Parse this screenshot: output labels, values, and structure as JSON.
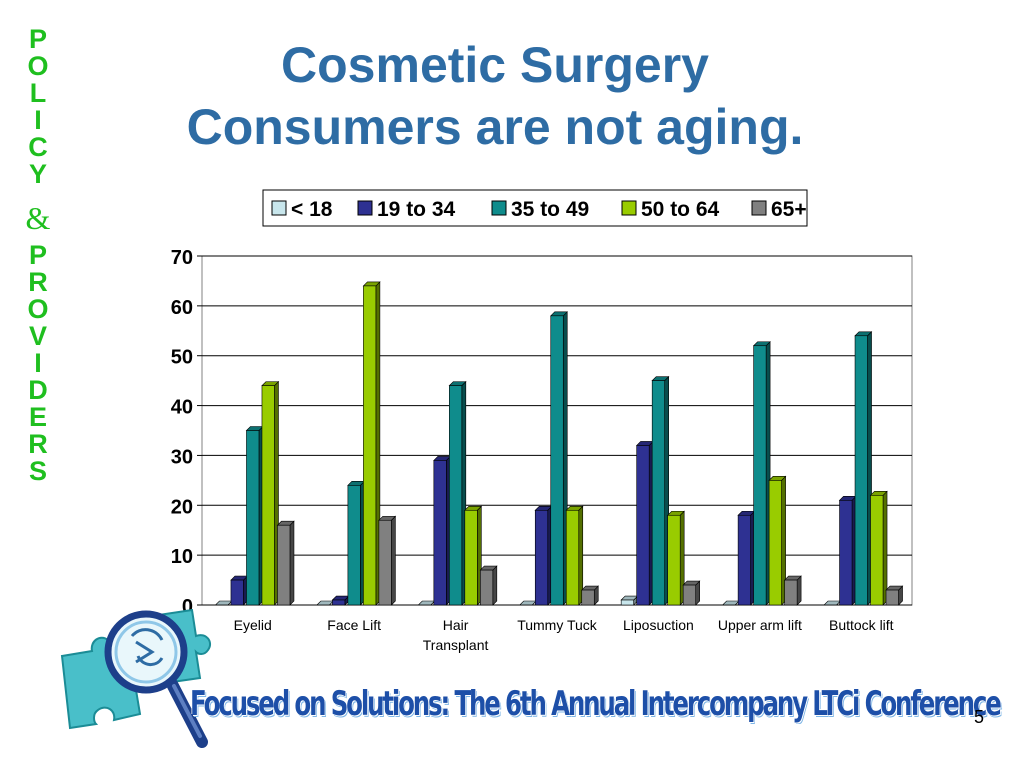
{
  "side_text": {
    "policy": [
      "P",
      "O",
      "L",
      "I",
      "C",
      "Y"
    ],
    "amp": "&",
    "providers": [
      "P",
      "R",
      "O",
      "V",
      "I",
      "D",
      "E",
      "R",
      "S"
    ]
  },
  "title": {
    "line1": "Cosmetic Surgery",
    "line2": "Consumers are not aging."
  },
  "footer": {
    "text": "Focused on Solutions:  The 6th Annual Intercompany LTCi Conference",
    "page_number": "5"
  },
  "colors": {
    "title": "#2e6ca4",
    "side_text": "#1fbf1f",
    "footer_text": "#1d4fa8"
  },
  "icons": {
    "logo": "puzzle-magnifier-icon"
  },
  "chart_data": {
    "type": "bar",
    "style": "3d-clustered",
    "categories": [
      "Eyelid",
      "Face Lift",
      "Hair Transplant",
      "Tummy Tuck",
      "Liposuction",
      "Upper arm lift",
      "Buttock lift"
    ],
    "category_lines": [
      [
        "Eyelid"
      ],
      [
        "Face Lift"
      ],
      [
        "Hair",
        "Transplant"
      ],
      [
        "Tummy Tuck"
      ],
      [
        "Liposuction"
      ],
      [
        "Upper arm lift"
      ],
      [
        "Buttock lift"
      ]
    ],
    "series": [
      {
        "name": "< 18",
        "color": "#c8e6ec",
        "values": [
          0,
          0,
          0,
          0,
          1,
          0,
          0
        ]
      },
      {
        "name": "19 to 34",
        "color": "#2e3192",
        "values": [
          5,
          1,
          29,
          19,
          32,
          18,
          21
        ]
      },
      {
        "name": "35 to 49",
        "color": "#0f8c8c",
        "values": [
          35,
          24,
          44,
          58,
          45,
          52,
          54
        ]
      },
      {
        "name": "50 to 64",
        "color": "#99cc00",
        "values": [
          44,
          64,
          19,
          19,
          18,
          25,
          22
        ]
      },
      {
        "name": "65+",
        "color": "#808080",
        "values": [
          16,
          17,
          7,
          3,
          4,
          5,
          3
        ]
      }
    ],
    "ylim": [
      0,
      70
    ],
    "yticks": [
      0,
      10,
      20,
      30,
      40,
      50,
      60,
      70
    ],
    "grid": true,
    "legend_position": "top"
  }
}
